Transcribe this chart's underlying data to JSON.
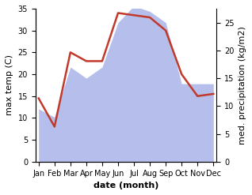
{
  "months": [
    "Jan",
    "Feb",
    "Mar",
    "Apr",
    "May",
    "Jun",
    "Jul",
    "Aug",
    "Sep",
    "Oct",
    "Nov",
    "Dec"
  ],
  "temperature": [
    14.5,
    8.0,
    25.0,
    23.0,
    23.0,
    34.0,
    33.5,
    33.0,
    30.0,
    20.0,
    15.0,
    15.5
  ],
  "precipitation": [
    9.5,
    8.0,
    17.0,
    15.0,
    17.0,
    25.0,
    28.0,
    27.0,
    25.0,
    14.0,
    14.0,
    14.0
  ],
  "temp_color": "#c0392b",
  "precip_color": "#aab4e8",
  "ylabel_left": "max temp (C)",
  "ylabel_right": "med. precipitation (kg/m2)",
  "xlabel": "date (month)",
  "ylim_left": [
    0,
    35
  ],
  "ylim_right": [
    0,
    27.5
  ],
  "yticks_left": [
    0,
    5,
    10,
    15,
    20,
    25,
    30,
    35
  ],
  "yticks_right": [
    0,
    5,
    10,
    15,
    20,
    25
  ],
  "axis_fontsize": 8,
  "tick_fontsize": 7
}
